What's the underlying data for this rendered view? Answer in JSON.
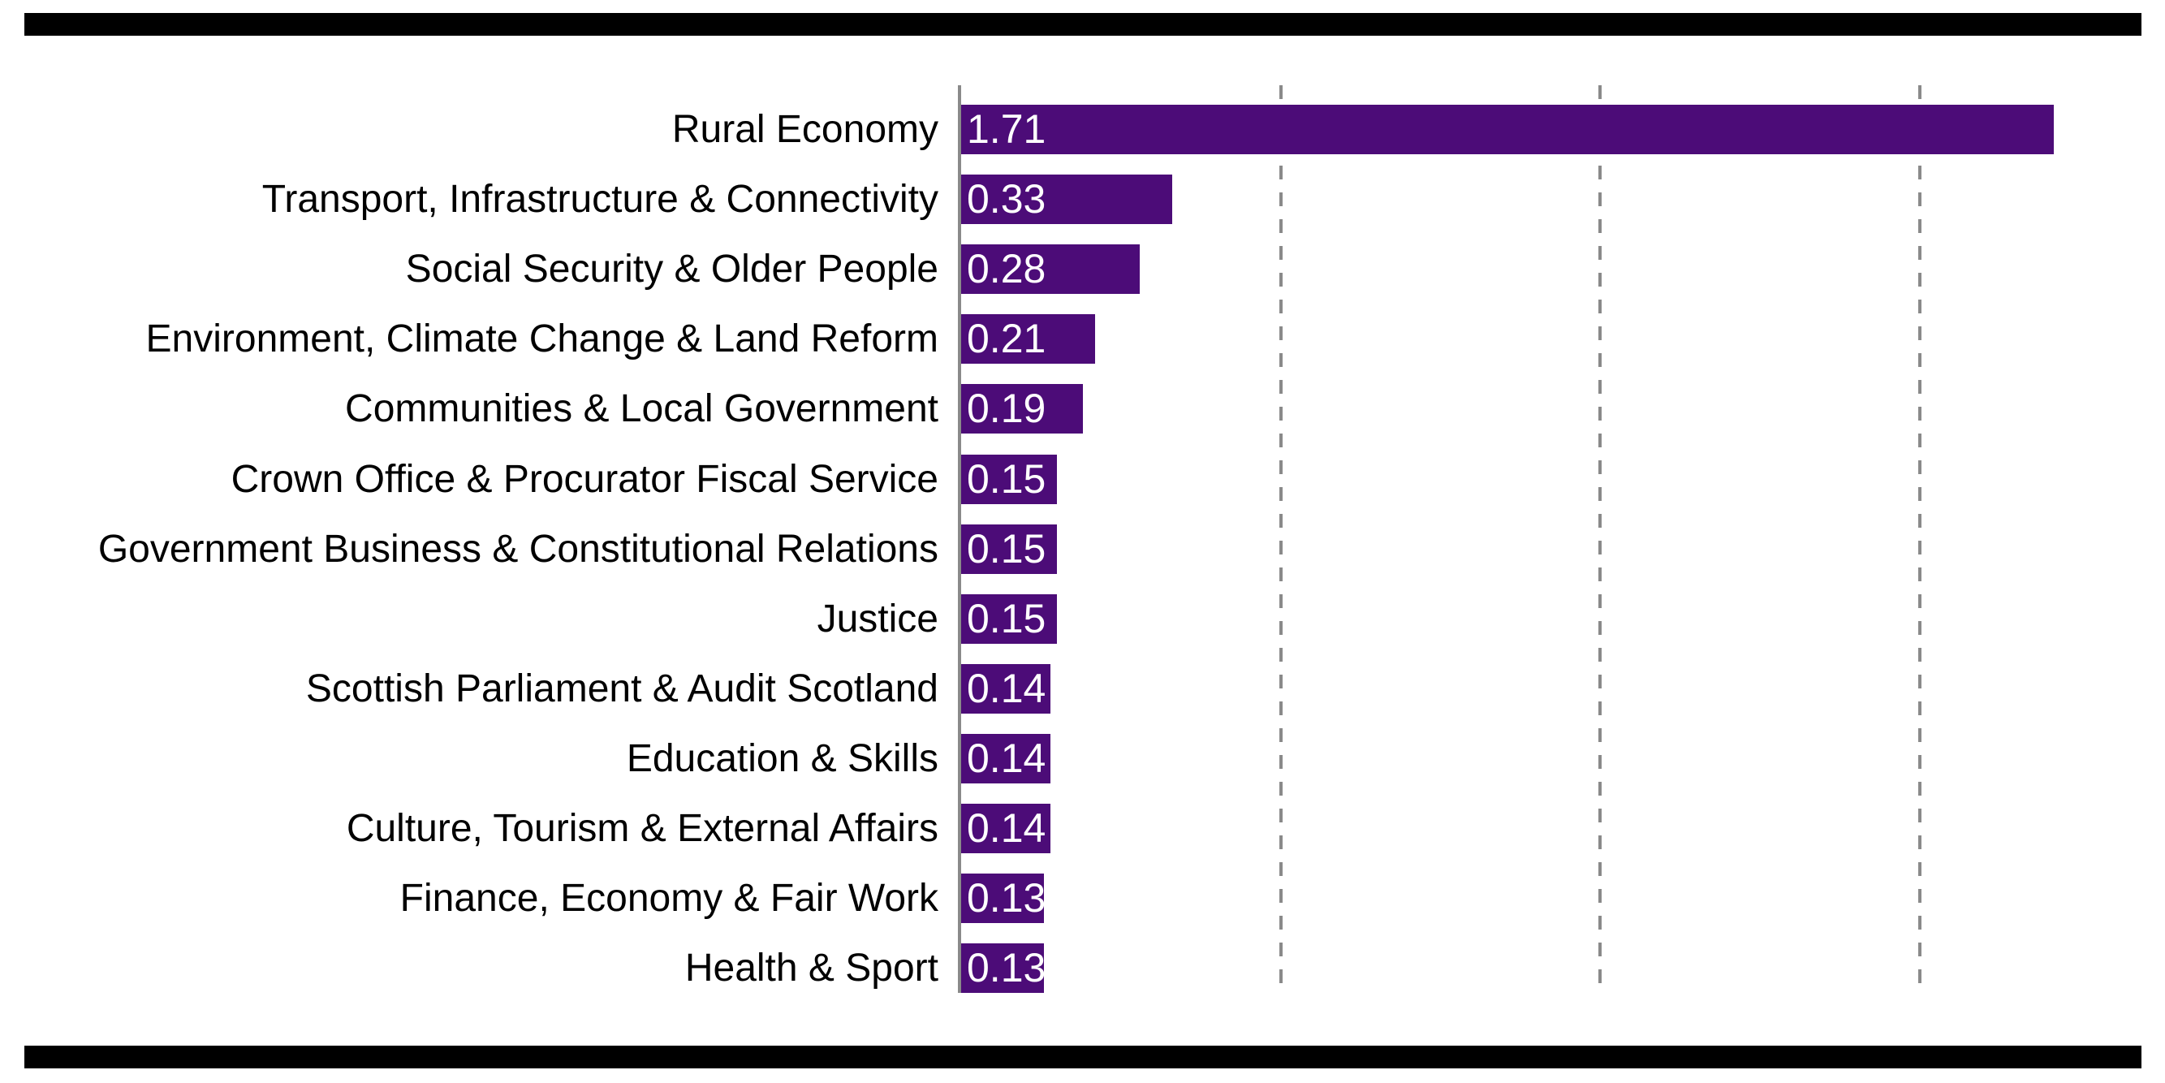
{
  "figure": {
    "background_color": "#ffffff",
    "border_rule_color": "#000000"
  },
  "chart_data": {
    "type": "bar",
    "orientation": "horizontal",
    "title": "",
    "xlabel": "",
    "ylabel": "",
    "categories": [
      "Rural Economy",
      "Transport, Infrastructure & Connectivity",
      "Social Security & Older People",
      "Environment, Climate Change & Land Reform",
      "Communities & Local Government",
      "Crown Office & Procurator Fiscal Service",
      "Government Business & Constitutional Relations",
      "Justice",
      "Scottish Parliament & Audit Scotland",
      "Education & Skills",
      "Culture, Tourism & External Affairs",
      "Finance, Economy & Fair Work",
      "Health & Sport"
    ],
    "values": [
      1.71,
      0.33,
      0.28,
      0.21,
      0.19,
      0.15,
      0.15,
      0.15,
      0.14,
      0.14,
      0.14,
      0.13,
      0.13
    ],
    "value_labels": [
      "1.71",
      "0.33",
      "0.28",
      "0.21",
      "0.19",
      "0.15",
      "0.15",
      "0.15",
      "0.14",
      "0.14",
      "0.14",
      "0.13",
      "0.13"
    ],
    "xlim": [
      0,
      1.88
    ],
    "gridlines": [
      0.5,
      1.0,
      1.5
    ],
    "gridline_style": "dashed",
    "grid": "vertical-dashed",
    "legend_position": "none",
    "colors": {
      "bar": "#4C0C78",
      "axis_line": "#8A8A8A",
      "gridline": "#8A8A8A",
      "category_label": "#000000",
      "value_label": "#FFFFFF"
    }
  }
}
